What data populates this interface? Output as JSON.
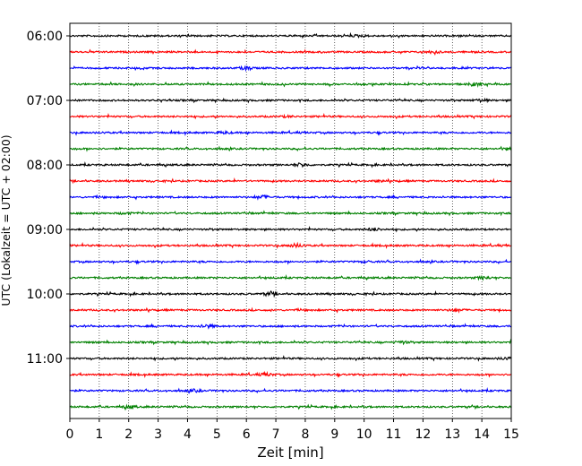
{
  "chart_data": {
    "type": "line",
    "title": "",
    "xlabel": "Zeit  [min]",
    "ylabel": "UTC (Lokalzeit = UTC + 02:00)",
    "xlim": [
      0,
      15
    ],
    "x_ticks": [
      "0",
      "1",
      "2",
      "3",
      "4",
      "5",
      "6",
      "7",
      "8",
      "9",
      "10",
      "11",
      "12",
      "13",
      "14",
      "15"
    ],
    "y_ticks": [
      "06:00",
      "07:00",
      "08:00",
      "09:00",
      "10:00",
      "11:00"
    ],
    "grid": "vertical dotted at each minute",
    "trace_interval_minutes": 15,
    "traces": [
      {
        "start": "06:00",
        "color": "#000000"
      },
      {
        "start": "06:15",
        "color": "#ff0000"
      },
      {
        "start": "06:30",
        "color": "#0000ff"
      },
      {
        "start": "06:45",
        "color": "#008000"
      },
      {
        "start": "07:00",
        "color": "#000000"
      },
      {
        "start": "07:15",
        "color": "#ff0000"
      },
      {
        "start": "07:30",
        "color": "#0000ff"
      },
      {
        "start": "07:45",
        "color": "#008000"
      },
      {
        "start": "08:00",
        "color": "#000000"
      },
      {
        "start": "08:15",
        "color": "#ff0000"
      },
      {
        "start": "08:30",
        "color": "#0000ff"
      },
      {
        "start": "08:45",
        "color": "#008000"
      },
      {
        "start": "09:00",
        "color": "#000000"
      },
      {
        "start": "09:15",
        "color": "#ff0000"
      },
      {
        "start": "09:30",
        "color": "#0000ff"
      },
      {
        "start": "09:45",
        "color": "#008000"
      },
      {
        "start": "10:00",
        "color": "#000000"
      },
      {
        "start": "10:15",
        "color": "#ff0000"
      },
      {
        "start": "10:30",
        "color": "#0000ff"
      },
      {
        "start": "10:45",
        "color": "#008000"
      },
      {
        "start": "11:00",
        "color": "#000000"
      },
      {
        "start": "11:15",
        "color": "#ff0000"
      },
      {
        "start": "11:30",
        "color": "#0000ff"
      },
      {
        "start": "11:45",
        "color": "#008000"
      }
    ]
  }
}
